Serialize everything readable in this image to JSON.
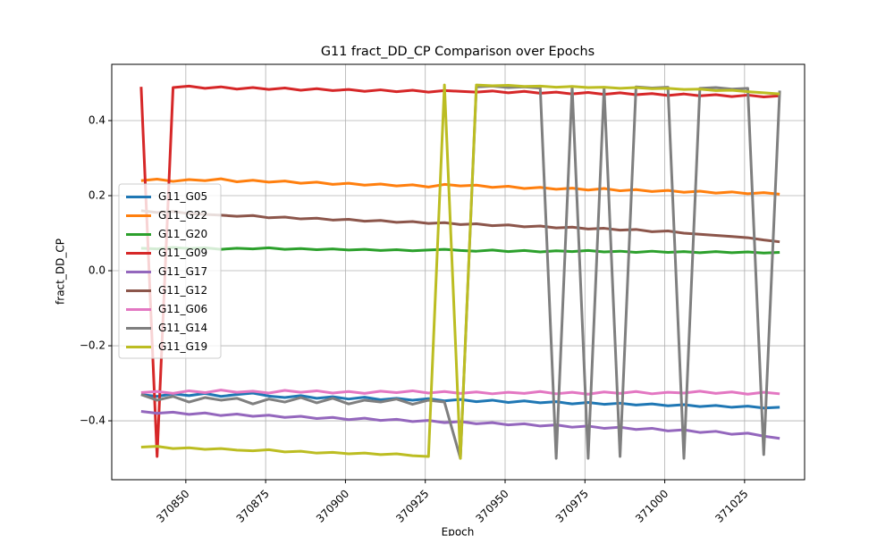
{
  "chart_data": {
    "type": "line",
    "title": "G11 fract_DD_CP Comparison over Epochs",
    "x_label": "Epoch",
    "y_label": "fract_DD_CP",
    "x": [
      370836,
      370841,
      370846,
      370851,
      370856,
      370861,
      370866,
      370871,
      370876,
      370881,
      370886,
      370891,
      370896,
      370901,
      370906,
      370911,
      370916,
      370921,
      370926,
      370931,
      370936,
      370941,
      370946,
      370951,
      370956,
      370961,
      370966,
      370971,
      370976,
      370981,
      370986,
      370991,
      370996,
      371001,
      371006,
      371011,
      371016,
      371021,
      371026,
      371031,
      371036
    ],
    "xlim": [
      370826.8,
      371043.8
    ],
    "xticks": [
      370850,
      370875,
      370900,
      370925,
      370950,
      370975,
      371000,
      371025
    ],
    "ylim": [
      -0.557,
      0.55
    ],
    "yticks": [
      {
        "value": -0.4,
        "label": "−0.4"
      },
      {
        "value": -0.2,
        "label": "−0.2"
      },
      {
        "value": 0,
        "label": "0.0"
      },
      0.2,
      0.4
    ],
    "grid": true,
    "legend_loc": "center left",
    "series": [
      {
        "name": "G11_G05",
        "color": "#1f77b4",
        "values": [
          -0.33,
          -0.335,
          -0.328,
          -0.333,
          -0.327,
          -0.335,
          -0.33,
          -0.326,
          -0.334,
          -0.338,
          -0.333,
          -0.34,
          -0.336,
          -0.342,
          -0.337,
          -0.344,
          -0.34,
          -0.345,
          -0.341,
          -0.347,
          -0.343,
          -0.349,
          -0.345,
          -0.351,
          -0.347,
          -0.352,
          -0.349,
          -0.355,
          -0.351,
          -0.356,
          -0.353,
          -0.358,
          -0.355,
          -0.36,
          -0.357,
          -0.362,
          -0.359,
          -0.364,
          -0.361,
          -0.366,
          -0.364
        ]
      },
      {
        "name": "G11_G22",
        "color": "#ff7f0e",
        "values": [
          0.24,
          0.244,
          0.238,
          0.243,
          0.24,
          0.245,
          0.237,
          0.241,
          0.236,
          0.239,
          0.233,
          0.236,
          0.23,
          0.233,
          0.228,
          0.231,
          0.226,
          0.229,
          0.223,
          0.23,
          0.226,
          0.228,
          0.222,
          0.225,
          0.219,
          0.222,
          0.217,
          0.22,
          0.215,
          0.219,
          0.213,
          0.216,
          0.211,
          0.214,
          0.209,
          0.212,
          0.207,
          0.21,
          0.205,
          0.208,
          0.204
        ]
      },
      {
        "name": "G11_G20",
        "color": "#2ca02c",
        "values": [
          0.06,
          0.058,
          0.062,
          0.059,
          0.061,
          0.057,
          0.06,
          0.058,
          0.061,
          0.057,
          0.059,
          0.056,
          0.058,
          0.055,
          0.057,
          0.054,
          0.056,
          0.053,
          0.055,
          0.057,
          0.054,
          0.052,
          0.055,
          0.051,
          0.054,
          0.05,
          0.053,
          0.051,
          0.054,
          0.05,
          0.052,
          0.049,
          0.052,
          0.049,
          0.051,
          0.048,
          0.051,
          0.048,
          0.05,
          0.047,
          0.049
        ]
      },
      {
        "name": "G11_G09",
        "color": "#d62728",
        "values": [
          0.49,
          -0.495,
          0.488,
          0.492,
          0.486,
          0.49,
          0.484,
          0.488,
          0.483,
          0.487,
          0.481,
          0.485,
          0.48,
          0.483,
          0.478,
          0.482,
          0.477,
          0.481,
          0.476,
          0.48,
          0.478,
          0.476,
          0.479,
          0.474,
          0.478,
          0.473,
          0.476,
          0.471,
          0.475,
          0.47,
          0.474,
          0.469,
          0.472,
          0.467,
          0.471,
          0.466,
          0.469,
          0.464,
          0.468,
          0.463,
          0.466
        ]
      },
      {
        "name": "G11_G17",
        "color": "#9467bd",
        "values": [
          -0.375,
          -0.38,
          -0.377,
          -0.383,
          -0.379,
          -0.386,
          -0.382,
          -0.388,
          -0.385,
          -0.391,
          -0.388,
          -0.394,
          -0.391,
          -0.397,
          -0.393,
          -0.399,
          -0.396,
          -0.402,
          -0.399,
          -0.405,
          -0.402,
          -0.408,
          -0.405,
          -0.411,
          -0.408,
          -0.414,
          -0.411,
          -0.417,
          -0.414,
          -0.42,
          -0.417,
          -0.423,
          -0.42,
          -0.427,
          -0.424,
          -0.431,
          -0.428,
          -0.436,
          -0.433,
          -0.441,
          -0.447
        ]
      },
      {
        "name": "G11_G12",
        "color": "#8c564b",
        "values": [
          0.16,
          0.155,
          0.158,
          0.152,
          0.15,
          0.148,
          0.145,
          0.147,
          0.141,
          0.143,
          0.138,
          0.14,
          0.135,
          0.137,
          0.132,
          0.134,
          0.129,
          0.131,
          0.126,
          0.128,
          0.123,
          0.125,
          0.12,
          0.122,
          0.117,
          0.119,
          0.114,
          0.116,
          0.111,
          0.113,
          0.108,
          0.11,
          0.104,
          0.106,
          0.1,
          0.097,
          0.094,
          0.091,
          0.088,
          0.082,
          0.077
        ]
      },
      {
        "name": "G11_G06",
        "color": "#e377c2",
        "values": [
          -0.325,
          -0.322,
          -0.327,
          -0.32,
          -0.325,
          -0.318,
          -0.324,
          -0.321,
          -0.326,
          -0.319,
          -0.324,
          -0.32,
          -0.326,
          -0.322,
          -0.327,
          -0.321,
          -0.325,
          -0.32,
          -0.326,
          -0.322,
          -0.327,
          -0.323,
          -0.328,
          -0.324,
          -0.327,
          -0.322,
          -0.328,
          -0.324,
          -0.329,
          -0.323,
          -0.327,
          -0.322,
          -0.328,
          -0.324,
          -0.326,
          -0.321,
          -0.327,
          -0.323,
          -0.329,
          -0.324,
          -0.328
        ]
      },
      {
        "name": "G11_G14",
        "color": "#7f7f7f",
        "values": [
          -0.33,
          -0.345,
          -0.335,
          -0.35,
          -0.338,
          -0.345,
          -0.34,
          -0.355,
          -0.342,
          -0.35,
          -0.338,
          -0.352,
          -0.34,
          -0.355,
          -0.345,
          -0.35,
          -0.342,
          -0.356,
          -0.345,
          -0.35,
          -0.5,
          0.49,
          0.492,
          0.488,
          0.49,
          0.487,
          -0.5,
          0.49,
          -0.5,
          0.488,
          -0.495,
          0.49,
          0.487,
          0.489,
          -0.5,
          0.486,
          0.488,
          0.484,
          0.486,
          -0.49,
          0.48
        ]
      },
      {
        "name": "G11_G19",
        "color": "#bcbd22",
        "values": [
          -0.47,
          -0.468,
          -0.474,
          -0.472,
          -0.476,
          -0.474,
          -0.478,
          -0.48,
          -0.477,
          -0.483,
          -0.481,
          -0.486,
          -0.484,
          -0.488,
          -0.486,
          -0.49,
          -0.488,
          -0.493,
          -0.495,
          0.495,
          -0.5,
          0.495,
          0.493,
          0.494,
          0.491,
          0.492,
          0.489,
          0.491,
          0.488,
          0.489,
          0.486,
          0.488,
          0.485,
          0.486,
          0.483,
          0.484,
          0.48,
          0.481,
          0.477,
          0.474,
          0.471
        ]
      }
    ]
  }
}
